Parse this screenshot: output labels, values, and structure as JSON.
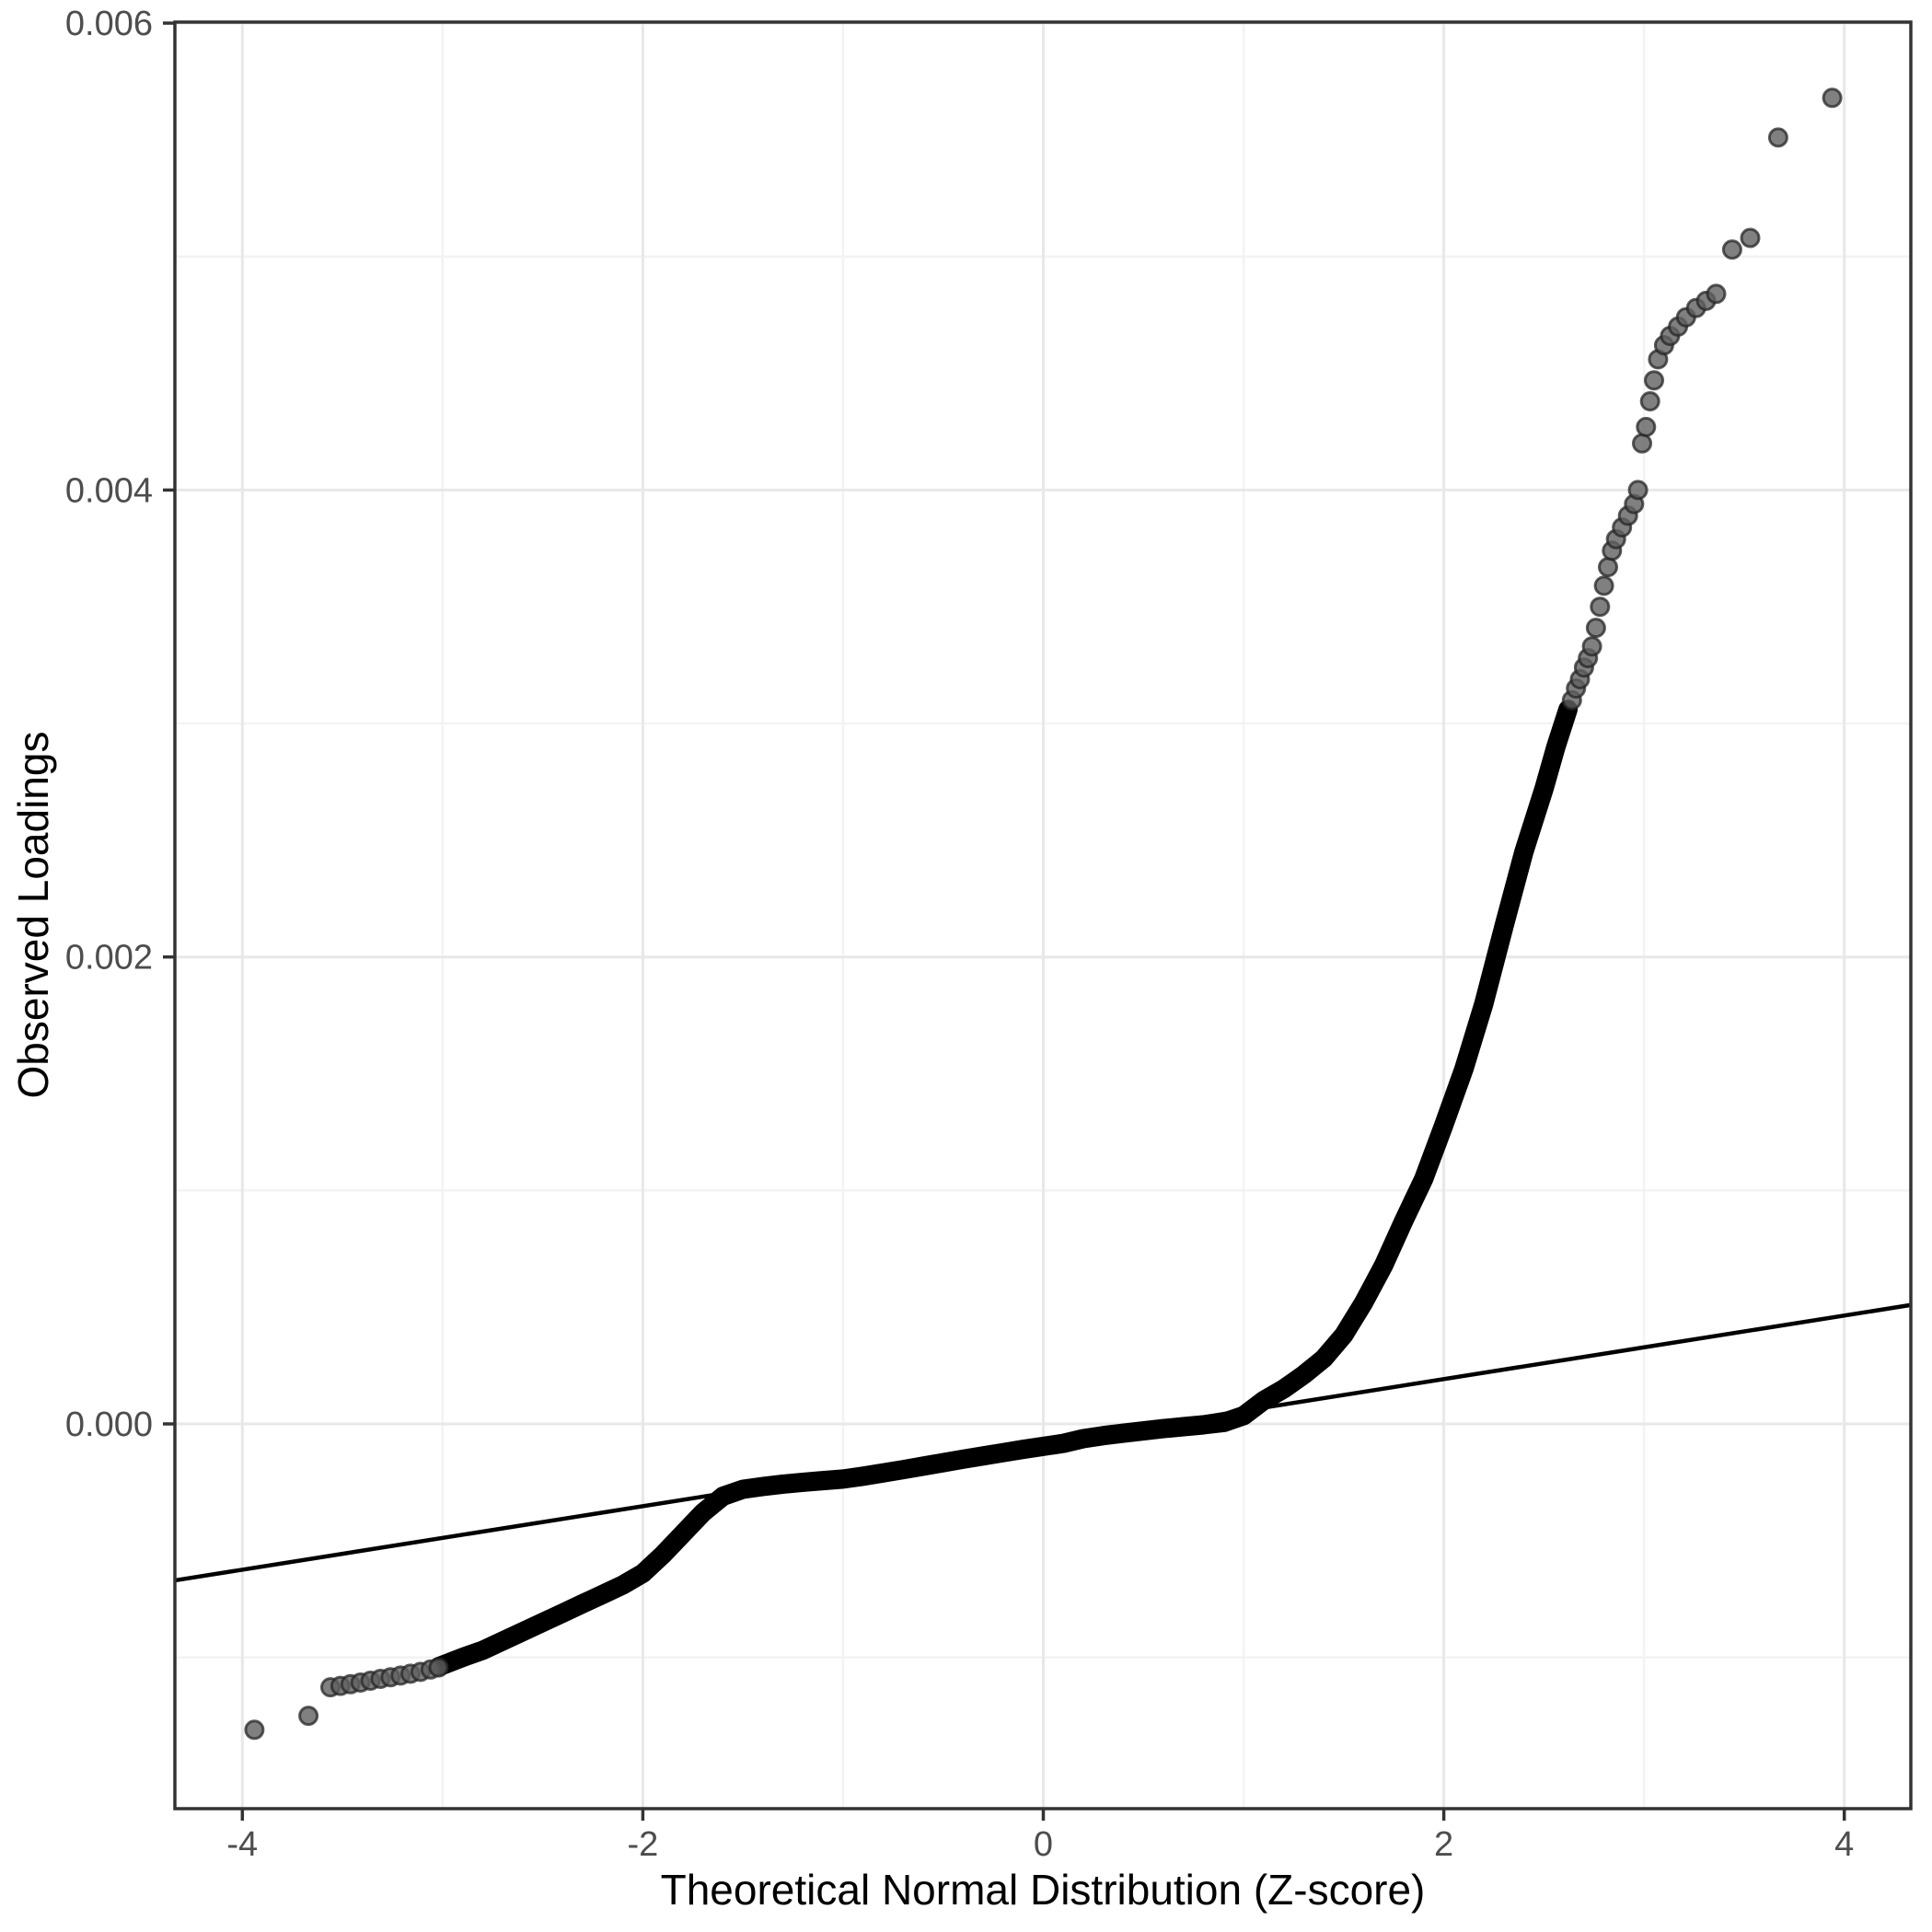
{
  "chart_data": {
    "type": "scatter",
    "subtype": "qq-plot",
    "title": "",
    "xlabel": "Theoretical Normal Distribution (Z-score)",
    "ylabel": "Observed Loadings",
    "legend": "none",
    "grid": "major and minor, light gray on white panel with dark border",
    "x_axis": {
      "tick_values": [
        -4,
        -2,
        0,
        2,
        4
      ],
      "tick_labels": [
        "-4",
        "-2",
        "0",
        "2",
        "4"
      ],
      "minor_gridlines": [
        -3,
        -1,
        1,
        3
      ],
      "range": [
        -4.335,
        4.33
      ]
    },
    "y_axis": {
      "tick_values": [
        0.0,
        0.002,
        0.004,
        0.006
      ],
      "tick_labels": [
        "0.000",
        "0.002",
        "0.004",
        "0.006"
      ],
      "minor_gridlines": [
        -0.001,
        0.001,
        0.003,
        0.005
      ],
      "range": [
        -0.00165,
        0.00601
      ]
    },
    "reference_line": {
      "type": "qq-line",
      "intercept": -8e-05,
      "slope_per_z": 0.000136,
      "endpoints": [
        [
          -4.335,
          -0.00067
        ],
        [
          4.33,
          0.000509
        ]
      ]
    },
    "series": {
      "dense_curve": [
        [
          -3.02,
          -0.00104
        ],
        [
          -2.9,
          -0.001
        ],
        [
          -2.8,
          -0.00097
        ],
        [
          -2.7,
          -0.00093
        ],
        [
          -2.6,
          -0.00089
        ],
        [
          -2.5,
          -0.00085
        ],
        [
          -2.4,
          -0.00081
        ],
        [
          -2.3,
          -0.00077
        ],
        [
          -2.2,
          -0.00073
        ],
        [
          -2.1,
          -0.00069
        ],
        [
          -2.0,
          -0.00064
        ],
        [
          -1.9,
          -0.00056
        ],
        [
          -1.8,
          -0.00047
        ],
        [
          -1.7,
          -0.00038
        ],
        [
          -1.6,
          -0.00031
        ],
        [
          -1.5,
          -0.00028
        ],
        [
          -1.4,
          -0.000268
        ],
        [
          -1.3,
          -0.000258
        ],
        [
          -1.2,
          -0.00025
        ],
        [
          -1.1,
          -0.000243
        ],
        [
          -1.0,
          -0.000236
        ],
        [
          -0.9,
          -0.000224
        ],
        [
          -0.8,
          -0.00021
        ],
        [
          -0.7,
          -0.000196
        ],
        [
          -0.6,
          -0.000181
        ],
        [
          -0.5,
          -0.000166
        ],
        [
          -0.4,
          -0.000151
        ],
        [
          -0.3,
          -0.000137
        ],
        [
          -0.2,
          -0.000123
        ],
        [
          -0.1,
          -0.000109
        ],
        [
          0.0,
          -9.6e-05
        ],
        [
          0.1,
          -8.3e-05
        ],
        [
          0.2,
          -6.3e-05
        ],
        [
          0.3,
          -5e-05
        ],
        [
          0.4,
          -4e-05
        ],
        [
          0.5,
          -3e-05
        ],
        [
          0.6,
          -2e-05
        ],
        [
          0.7,
          -1.2e-05
        ],
        [
          0.8,
          -4e-06
        ],
        [
          0.9,
          6e-06
        ],
        [
          1.0,
          3.5e-05
        ],
        [
          1.1,
          0.0001
        ],
        [
          1.2,
          0.00015
        ],
        [
          1.3,
          0.00021
        ],
        [
          1.4,
          0.00028
        ],
        [
          1.5,
          0.00038
        ],
        [
          1.6,
          0.00052
        ],
        [
          1.7,
          0.00068
        ],
        [
          1.8,
          0.00087
        ],
        [
          1.9,
          0.00105
        ],
        [
          2.0,
          0.00128
        ],
        [
          2.1,
          0.00152
        ],
        [
          2.2,
          0.0018
        ],
        [
          2.3,
          0.00213
        ],
        [
          2.4,
          0.00245
        ],
        [
          2.5,
          0.00272
        ],
        [
          2.56,
          0.0029
        ],
        [
          2.62,
          0.00306
        ]
      ],
      "low_tail_points": [
        [
          -3.94,
          -0.00131
        ],
        [
          -3.67,
          -0.00125
        ],
        [
          -3.56,
          -0.001128
        ],
        [
          -3.51,
          -0.001122
        ],
        [
          -3.46,
          -0.001115
        ],
        [
          -3.41,
          -0.001108
        ],
        [
          -3.36,
          -0.0011
        ],
        [
          -3.31,
          -0.001092
        ],
        [
          -3.26,
          -0.001085
        ],
        [
          -3.21,
          -0.001078
        ],
        [
          -3.16,
          -0.00107
        ],
        [
          -3.11,
          -0.001062
        ],
        [
          -3.06,
          -0.001052
        ],
        [
          -3.02,
          -0.001043
        ]
      ],
      "high_tail_points": [
        [
          2.64,
          0.0031
        ],
        [
          2.66,
          0.00315
        ],
        [
          2.68,
          0.00319
        ],
        [
          2.7,
          0.00324
        ],
        [
          2.72,
          0.00328
        ],
        [
          2.74,
          0.00333
        ],
        [
          2.76,
          0.00341
        ],
        [
          2.78,
          0.0035
        ],
        [
          2.8,
          0.00359
        ],
        [
          2.82,
          0.00367
        ],
        [
          2.84,
          0.00374
        ],
        [
          2.86,
          0.00379
        ],
        [
          2.89,
          0.00384
        ],
        [
          2.92,
          0.00389
        ],
        [
          2.95,
          0.00394
        ],
        [
          2.97,
          0.004
        ],
        [
          2.99,
          0.0042
        ],
        [
          3.01,
          0.00427
        ],
        [
          3.03,
          0.00438
        ],
        [
          3.05,
          0.00447
        ],
        [
          3.07,
          0.00456
        ],
        [
          3.1,
          0.00462
        ],
        [
          3.13,
          0.00466
        ],
        [
          3.17,
          0.0047
        ],
        [
          3.21,
          0.00474
        ],
        [
          3.26,
          0.00478
        ],
        [
          3.31,
          0.00481
        ],
        [
          3.36,
          0.00484
        ],
        [
          3.44,
          0.00503
        ],
        [
          3.53,
          0.00508
        ],
        [
          3.67,
          0.00551
        ],
        [
          3.94,
          0.00568
        ]
      ]
    },
    "colors": {
      "point_fill": "#606060",
      "point_stroke": "#262626",
      "dense_band": "#000000",
      "reference_line": "#000000",
      "grid_major": "#e8e8e8",
      "grid_minor": "#f3f3f3",
      "panel_border": "#333333",
      "tick_mark": "#333333",
      "tick_label": "#4d4d4d",
      "axis_title": "#000000",
      "background": "#ffffff"
    }
  }
}
